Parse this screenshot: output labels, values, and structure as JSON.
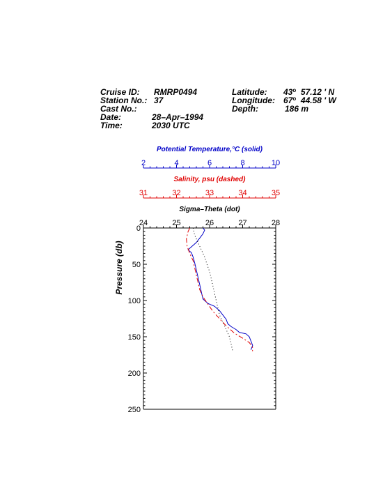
{
  "header": {
    "cruise_label": "Cruise ID:",
    "cruise_value": "RMRP0494",
    "station_label": "Station No.:",
    "station_value": "37",
    "cast_label": "Cast No.:",
    "cast_value": "",
    "date_label": "Date:",
    "date_value": "28–Apr–1994",
    "time_label": "Time:",
    "time_value": "2030 UTC",
    "lat_label": "Latitude:",
    "lat_deg": "43",
    "lat_min": "57.12 ' N",
    "lon_label": "Longitude:",
    "lon_deg": "67",
    "lon_min": "44.58 ' W",
    "depth_label": "Depth:",
    "depth_value": "186 m",
    "deg_symbol": "o"
  },
  "chart_data": {
    "type": "line",
    "y_label": "Pressure (db)",
    "y_range": [
      0,
      250
    ],
    "y_reversed": true,
    "y_ticks": [
      0,
      50,
      100,
      150,
      200,
      250
    ],
    "axes": [
      {
        "id": "temp",
        "label": "Potential Temperature,°C (solid)",
        "range": [
          2,
          10
        ],
        "ticks": [
          2,
          4,
          6,
          8,
          10
        ],
        "color": "#0000c8"
      },
      {
        "id": "sal",
        "label": "Salinity, psu  (dashed)",
        "range": [
          31,
          35
        ],
        "ticks": [
          31,
          32,
          33,
          34,
          35
        ],
        "color": "#e00000"
      },
      {
        "id": "sigma",
        "label": "Sigma–Theta (dot)",
        "range": [
          24,
          28
        ],
        "ticks": [
          24,
          25,
          26,
          27,
          28
        ],
        "color": "#000000"
      }
    ],
    "series": [
      {
        "axis": "temp",
        "style": "solid",
        "color": "#0000c8",
        "points": [
          [
            5.6,
            0
          ],
          [
            5.7,
            3
          ],
          [
            5.6,
            8
          ],
          [
            5.4,
            14
          ],
          [
            5.2,
            20
          ],
          [
            4.9,
            26
          ],
          [
            4.7,
            30
          ],
          [
            4.9,
            34
          ],
          [
            5.0,
            40
          ],
          [
            5.1,
            48
          ],
          [
            5.2,
            58
          ],
          [
            5.3,
            68
          ],
          [
            5.4,
            78
          ],
          [
            5.5,
            88
          ],
          [
            5.6,
            98
          ],
          [
            5.9,
            104
          ],
          [
            6.3,
            108
          ],
          [
            6.6,
            114
          ],
          [
            6.8,
            120
          ],
          [
            7.0,
            126
          ],
          [
            7.1,
            132
          ],
          [
            7.3,
            136
          ],
          [
            7.6,
            140
          ],
          [
            7.8,
            144
          ],
          [
            8.2,
            146
          ],
          [
            8.4,
            150
          ],
          [
            8.5,
            156
          ],
          [
            8.6,
            162
          ],
          [
            8.5,
            168
          ]
        ]
      },
      {
        "axis": "sal",
        "style": "dashed",
        "color": "#e00000",
        "points": [
          [
            32.4,
            0
          ],
          [
            32.35,
            5
          ],
          [
            32.3,
            15
          ],
          [
            32.32,
            25
          ],
          [
            32.4,
            35
          ],
          [
            32.5,
            45
          ],
          [
            32.55,
            55
          ],
          [
            32.6,
            65
          ],
          [
            32.65,
            75
          ],
          [
            32.7,
            85
          ],
          [
            32.8,
            95
          ],
          [
            32.95,
            105
          ],
          [
            33.1,
            115
          ],
          [
            33.3,
            125
          ],
          [
            33.5,
            135
          ],
          [
            33.75,
            145
          ],
          [
            34.0,
            152
          ],
          [
            34.2,
            158
          ],
          [
            34.3,
            164
          ],
          [
            34.3,
            170
          ]
        ]
      },
      {
        "axis": "sigma",
        "style": "dotted",
        "color": "#000000",
        "points": [
          [
            25.5,
            0
          ],
          [
            25.55,
            10
          ],
          [
            25.65,
            20
          ],
          [
            25.75,
            30
          ],
          [
            25.85,
            40
          ],
          [
            25.92,
            50
          ],
          [
            26.0,
            60
          ],
          [
            26.05,
            70
          ],
          [
            26.1,
            80
          ],
          [
            26.15,
            90
          ],
          [
            26.2,
            100
          ],
          [
            26.25,
            110
          ],
          [
            26.3,
            120
          ],
          [
            26.4,
            130
          ],
          [
            26.5,
            140
          ],
          [
            26.6,
            150
          ],
          [
            26.65,
            160
          ],
          [
            26.7,
            170
          ]
        ]
      }
    ]
  }
}
